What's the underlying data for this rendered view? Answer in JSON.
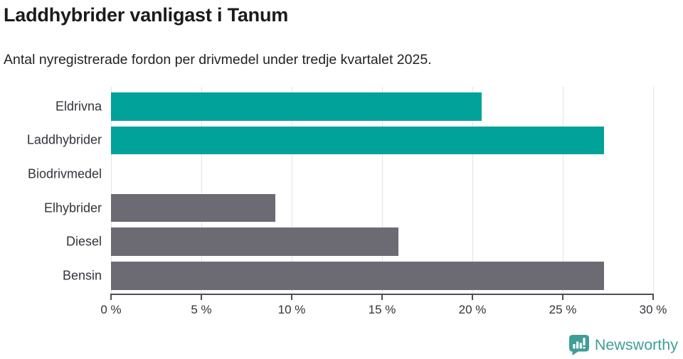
{
  "header": {
    "title": "Laddhybrider vanligast i Tanum",
    "subtitle": "Antal nyregistrerade fordon per drivmedel under tredje kvartalet 2025."
  },
  "branding": {
    "name": "Newsworthy",
    "logo_icon": "bar-chart-speech-bubble-icon",
    "color": "#3f9e97"
  },
  "colors": {
    "highlight_bar": "#00a299",
    "default_bar": "#6c6b74",
    "axis": "#4e4e56",
    "grid": "#e4e4e7",
    "text": "#33333b",
    "title_text": "#1b1b1b"
  },
  "chart_data": {
    "type": "bar",
    "orientation": "horizontal",
    "title": "Laddhybrider vanligast i Tanum",
    "subtitle": "Antal nyregistrerade fordon per drivmedel under tredje kvartalet 2025.",
    "categories": [
      "Eldrivna",
      "Laddhybrider",
      "Biodrivmedel",
      "Elhybrider",
      "Diesel",
      "Bensin"
    ],
    "values": [
      20.5,
      27.3,
      0,
      9.1,
      15.9,
      27.3
    ],
    "unit": "%",
    "bar_colors": [
      "#00a299",
      "#00a299",
      "#6c6b74",
      "#6c6b74",
      "#6c6b74",
      "#6c6b74"
    ],
    "xlim": [
      0,
      30
    ],
    "xticks": [
      0,
      5,
      10,
      15,
      20,
      25,
      30
    ],
    "xtick_labels": [
      "0 %",
      "5 %",
      "10 %",
      "15 %",
      "20 %",
      "25 %",
      "30 %"
    ],
    "grid": true,
    "legend": false
  }
}
